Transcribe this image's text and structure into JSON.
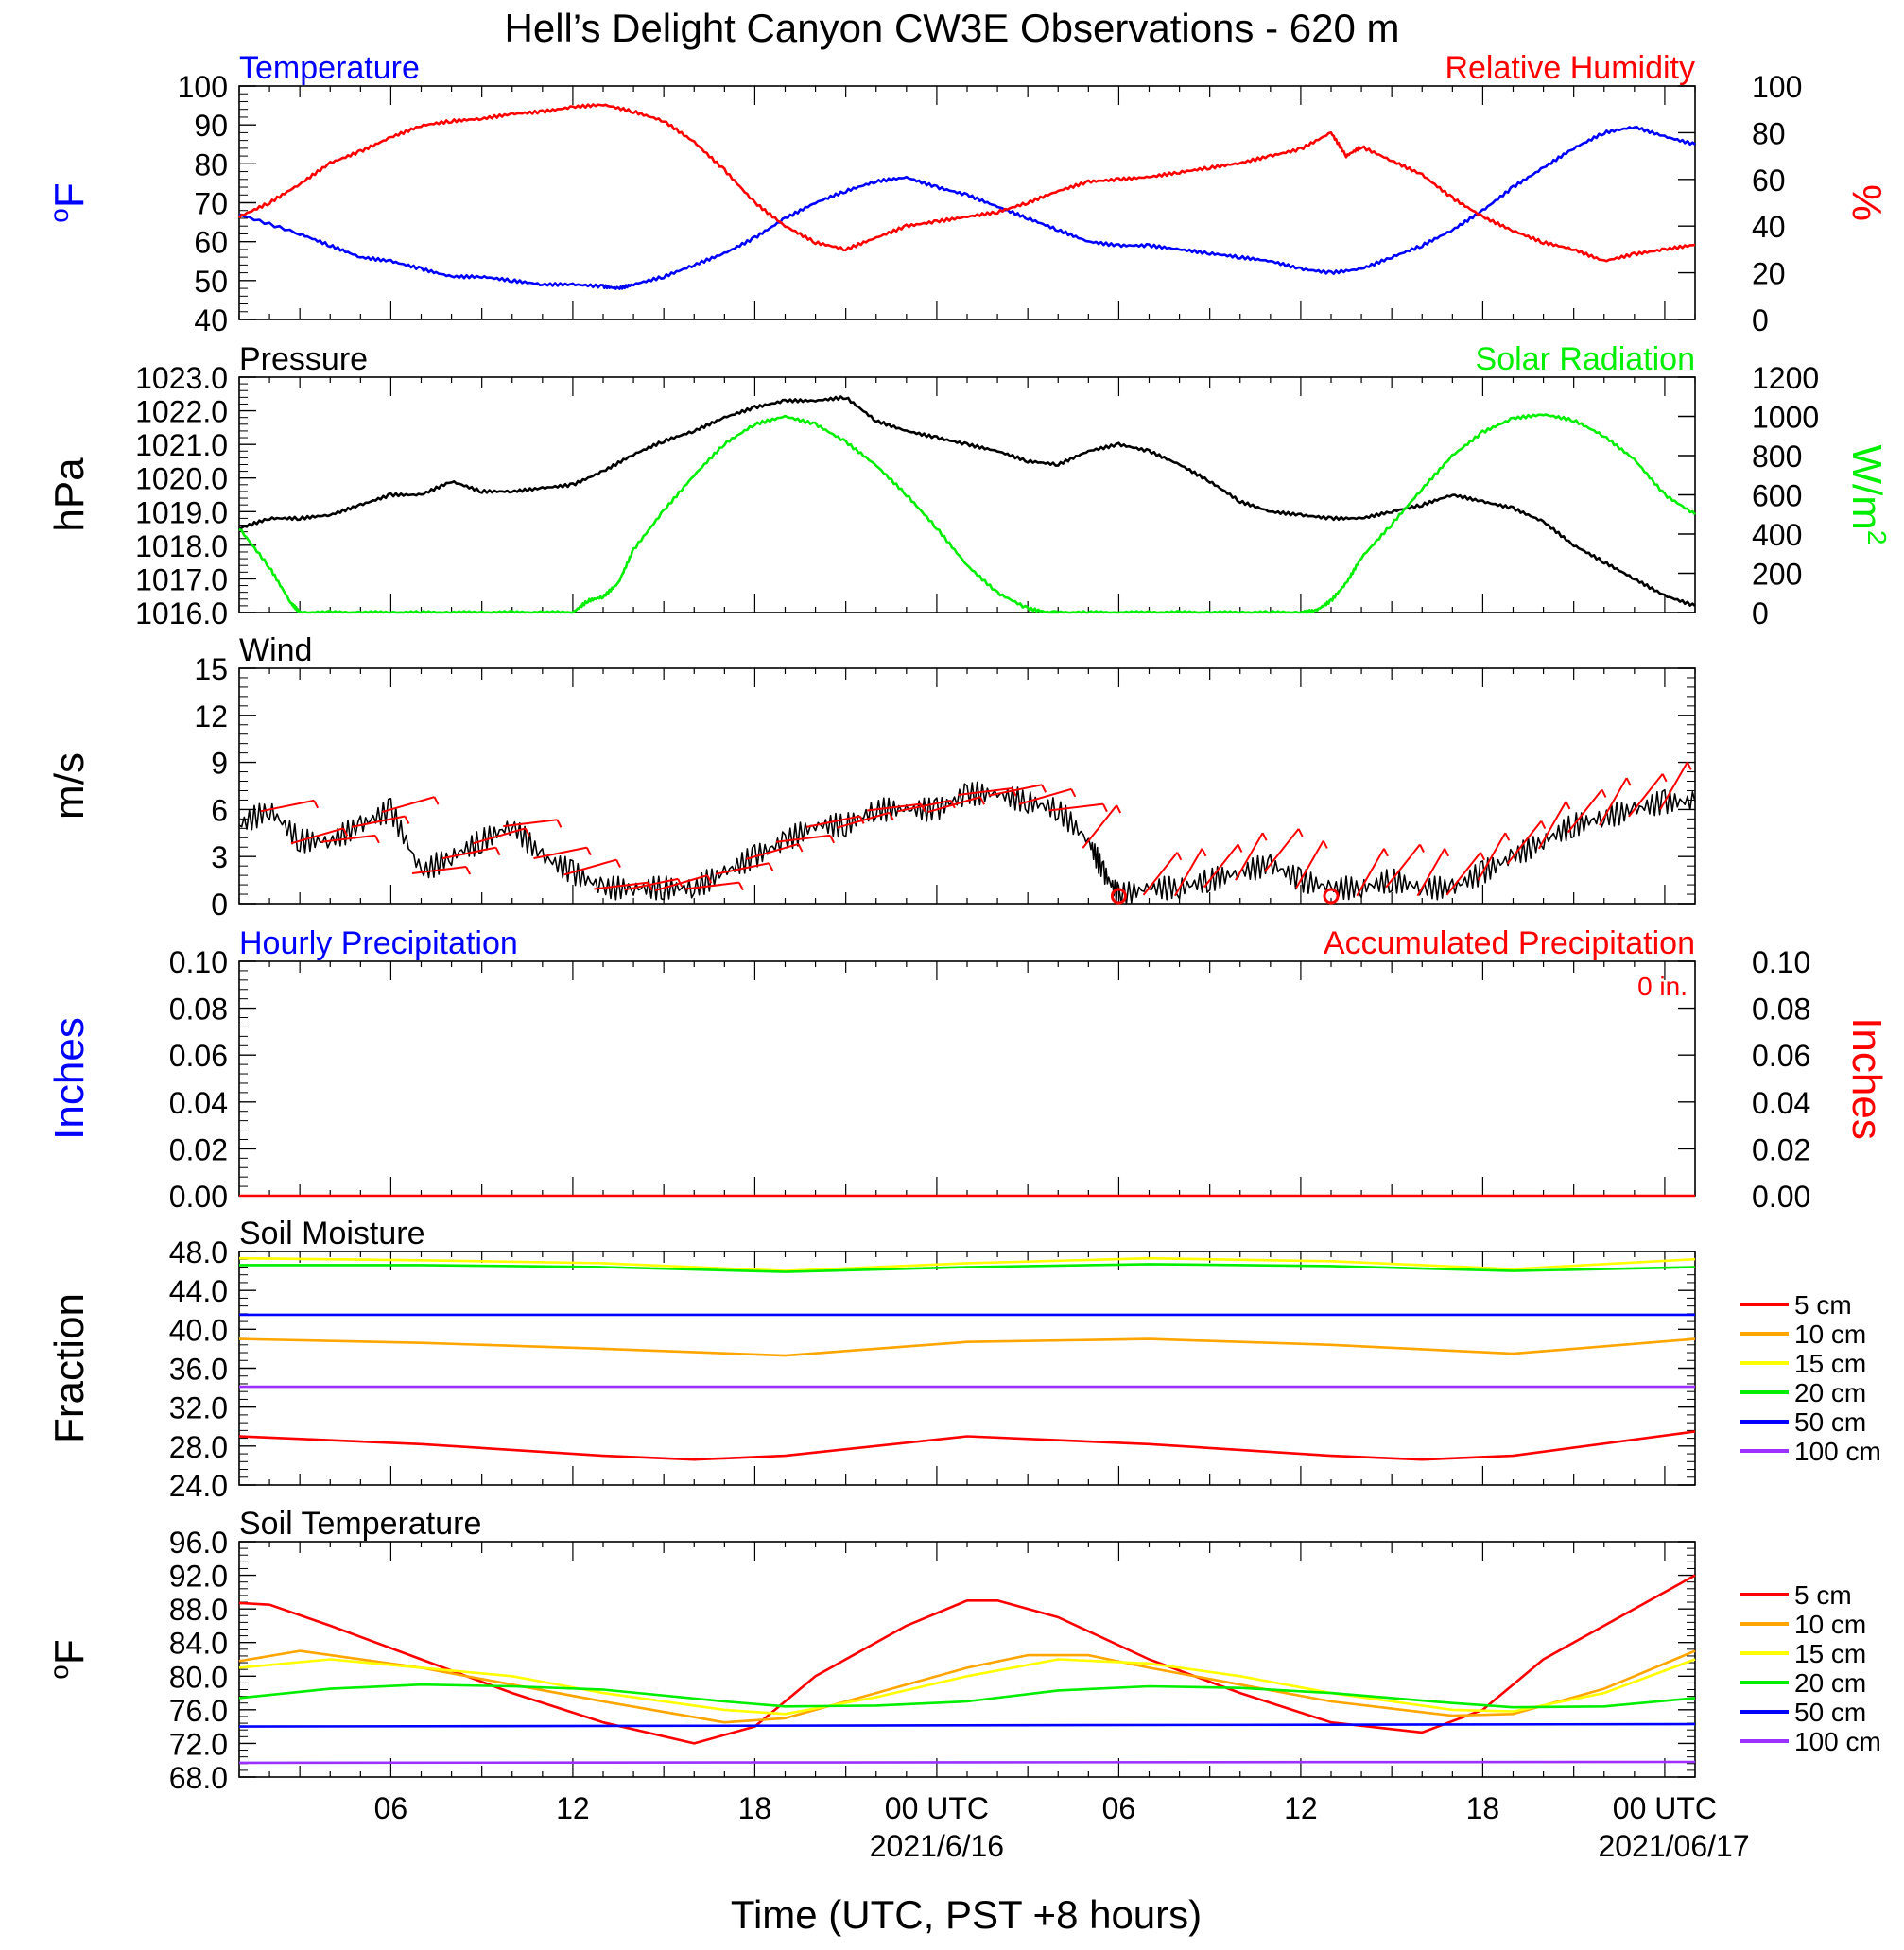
{
  "chart_data": [
    {
      "type": "line",
      "title": "Hell’s Delight Canyon CW3E Observations - 620 m",
      "panel_title_left": "Temperature",
      "panel_title_right": "Relative Humidity",
      "ylabel_left": "oF",
      "ylabel_right": "%",
      "ylim_left": [
        40,
        100
      ],
      "ylim_right": [
        0,
        100
      ],
      "yticks_left": [
        "100",
        "90",
        "80",
        "70",
        "60",
        "50",
        "40"
      ],
      "yticks_right": [
        "100",
        "80",
        "60",
        "40",
        "20",
        "0"
      ],
      "x_unit": "hours since 2021-06-15 01 UTC",
      "xlim": [
        0,
        48
      ],
      "series": [
        {
          "name": "Temperature",
          "axis": "left",
          "color": "#0000ff",
          "x": [
            0,
            2,
            3,
            4,
            5,
            6,
            7,
            8,
            9,
            10,
            11,
            12,
            12.5,
            13,
            14,
            15,
            16,
            17,
            18,
            19,
            20,
            21,
            22,
            23,
            24,
            25,
            26,
            27,
            28,
            29,
            30,
            31,
            32,
            33,
            34,
            35,
            36,
            37,
            38,
            39,
            40,
            41,
            42,
            43,
            44,
            45,
            46,
            47,
            48
          ],
          "y": [
            67,
            62,
            59,
            56,
            55,
            53,
            51,
            51,
            50,
            49,
            49,
            48.5,
            48,
            49,
            51,
            54,
            57,
            61,
            66,
            70,
            73,
            75.5,
            76.5,
            74,
            72,
            69,
            66,
            63,
            60,
            59,
            59,
            58,
            57,
            56,
            55,
            53,
            52,
            53,
            56,
            59,
            63,
            68,
            74,
            79,
            84,
            88,
            89.5,
            87,
            85
          ]
        },
        {
          "name": "Relative Humidity",
          "axis": "right",
          "color": "#ff0000",
          "x": [
            0,
            1,
            2,
            3,
            4,
            5,
            6,
            7,
            8,
            9,
            10,
            11,
            12,
            13,
            14,
            15,
            16,
            17,
            18,
            19,
            20,
            21,
            22,
            23,
            24,
            25,
            26,
            27,
            28,
            29,
            30,
            31,
            32,
            33,
            34,
            35,
            36,
            36.5,
            37,
            38,
            39,
            40,
            41,
            42,
            43,
            44,
            45,
            46,
            47,
            48
          ],
          "y": [
            44,
            50,
            58,
            67,
            72,
            78,
            83,
            85,
            86,
            88,
            89,
            91,
            92,
            89,
            85,
            76,
            64,
            50,
            40,
            33,
            30,
            35,
            40,
            42,
            44,
            46,
            50,
            55,
            59,
            60,
            61,
            63,
            65,
            67,
            70,
            73,
            80,
            70,
            74,
            68,
            62,
            52,
            44,
            38,
            33,
            30,
            25,
            28,
            30,
            32
          ]
        }
      ]
    },
    {
      "type": "line",
      "panel_title_left": "Pressure",
      "panel_title_right": "Solar Radiation",
      "ylabel_left": "hPa",
      "ylabel_right": "W/m2",
      "ylim_left": [
        1016,
        1023
      ],
      "ylim_right": [
        0,
        1200
      ],
      "yticks_left": [
        "1023.0",
        "1022.0",
        "1021.0",
        "1020.0",
        "1019.0",
        "1018.0",
        "1017.0",
        "1016.0"
      ],
      "yticks_right": [
        "1200",
        "1000",
        "800",
        "600",
        "400",
        "200",
        "0"
      ],
      "series": [
        {
          "name": "Pressure",
          "axis": "left",
          "color": "#000000",
          "x": [
            0,
            1,
            2,
            3,
            4,
            5,
            6,
            7,
            8,
            9,
            10,
            11,
            12,
            13,
            14,
            15,
            16,
            17,
            18,
            19,
            20,
            21,
            22,
            23,
            24,
            25,
            26,
            27,
            28,
            29,
            30,
            31,
            32,
            33,
            34,
            35,
            36,
            37,
            38,
            39,
            40,
            41,
            42,
            43,
            44,
            45,
            46,
            47,
            48
          ],
          "y": [
            1018.5,
            1018.8,
            1018.8,
            1018.9,
            1019.2,
            1019.5,
            1019.5,
            1019.9,
            1019.6,
            1019.6,
            1019.7,
            1019.8,
            1020.2,
            1020.7,
            1021.1,
            1021.4,
            1021.8,
            1022.1,
            1022.3,
            1022.3,
            1022.4,
            1021.7,
            1021.4,
            1021.2,
            1021.0,
            1020.8,
            1020.5,
            1020.4,
            1020.8,
            1021.0,
            1020.8,
            1020.4,
            1019.9,
            1019.3,
            1019.0,
            1018.9,
            1018.8,
            1018.8,
            1019.0,
            1019.2,
            1019.5,
            1019.3,
            1019.1,
            1018.7,
            1018.0,
            1017.5,
            1017.0,
            1016.5,
            1016.2
          ]
        },
        {
          "name": "Solar Radiation",
          "axis": "right",
          "color": "#00ee00",
          "x": [
            0,
            1,
            1.7,
            2,
            3,
            4,
            5,
            6,
            7,
            8,
            9,
            10,
            11,
            11.5,
            12,
            12.5,
            13,
            14,
            15,
            16,
            17,
            18,
            19,
            20,
            21,
            22,
            23,
            24,
            25,
            26,
            26.7,
            27,
            28,
            29,
            30,
            31,
            32,
            33,
            34,
            35,
            35.5,
            36,
            36.5,
            37,
            38,
            39,
            40,
            41,
            42,
            43,
            44,
            45,
            46,
            47,
            48
          ],
          "y": [
            430,
            230,
            50,
            0,
            0,
            0,
            0,
            0,
            0,
            0,
            0,
            0,
            0,
            60,
            80,
            150,
            320,
            520,
            700,
            860,
            960,
            1000,
            960,
            870,
            750,
            600,
            430,
            240,
            100,
            20,
            0,
            0,
            0,
            0,
            0,
            0,
            0,
            0,
            0,
            0,
            10,
            60,
            150,
            280,
            450,
            630,
            800,
            920,
            990,
            1010,
            980,
            900,
            780,
            600,
            500
          ]
        }
      ]
    },
    {
      "type": "line",
      "panel_title_left": "Wind",
      "ylabel_left": "m/s",
      "ylim_left": [
        0,
        15
      ],
      "yticks_left": [
        "15",
        "12",
        "9",
        "6",
        "3",
        "0"
      ],
      "series": [
        {
          "name": "Wind",
          "axis": "left",
          "color": "#000000",
          "x": [
            0,
            1,
            2,
            3,
            4,
            5,
            6,
            7,
            8,
            9,
            10,
            11,
            12,
            13,
            14,
            15,
            16,
            17,
            18,
            19,
            20,
            21,
            22,
            23,
            24,
            25,
            26,
            27,
            28,
            28.5,
            29,
            30,
            31,
            32,
            33,
            34,
            35,
            36,
            37,
            38,
            39,
            40,
            41,
            42,
            43,
            44,
            45,
            46,
            47,
            48
          ],
          "y": [
            5,
            6,
            4,
            4,
            5,
            6,
            2,
            3,
            4,
            5,
            3,
            2,
            1,
            1,
            1,
            1,
            2,
            3,
            4,
            5,
            5,
            6,
            6,
            6,
            7,
            7,
            6.5,
            6,
            4,
            2,
            0.5,
            1,
            1,
            1.5,
            2,
            2.5,
            1.5,
            1,
            1,
            1.5,
            1,
            1,
            2,
            3,
            4,
            5,
            5.5,
            6,
            6.5,
            6.5
          ]
        }
      ],
      "barbs_color": "#ff0000",
      "calm_marker_x": [
        29,
        36
      ]
    },
    {
      "type": "line",
      "panel_title_left": "Hourly Precipitation",
      "panel_title_right": "Accumulated Precipitation",
      "annotation": "0 in.",
      "ylabel_left": "Inches",
      "ylabel_right": "Inches",
      "ylim_left": [
        0,
        0.1
      ],
      "ylim_right": [
        0,
        0.1
      ],
      "yticks_left": [
        "0.10",
        "0.08",
        "0.06",
        "0.04",
        "0.02",
        "0.00"
      ],
      "yticks_right": [
        "0.10",
        "0.08",
        "0.06",
        "0.04",
        "0.02",
        "0.00"
      ],
      "series": [
        {
          "name": "Accumulated Precipitation",
          "axis": "right",
          "color": "#ff0000",
          "x": [
            0,
            48
          ],
          "y": [
            0,
            0
          ]
        }
      ]
    },
    {
      "type": "line",
      "panel_title_left": "Soil Moisture",
      "ylabel_left": "Fraction",
      "ylim_left": [
        24,
        48
      ],
      "yticks_left": [
        "48.0",
        "44.0",
        "40.0",
        "36.0",
        "32.0",
        "28.0",
        "24.0"
      ],
      "legend": [
        "5 cm",
        "10 cm",
        "15 cm",
        "20 cm",
        "50 cm",
        "100 cm"
      ],
      "series": [
        {
          "name": "5 cm",
          "color": "#ff0000",
          "x": [
            0,
            6,
            12,
            15,
            18,
            24,
            30,
            36,
            39,
            42,
            48
          ],
          "y": [
            29,
            28.2,
            27,
            26.6,
            27,
            29,
            28.2,
            27,
            26.6,
            27,
            29.5
          ]
        },
        {
          "name": "10 cm",
          "color": "#ffa500",
          "x": [
            0,
            6,
            12,
            18,
            24,
            30,
            36,
            42,
            48
          ],
          "y": [
            39,
            38.6,
            38,
            37.3,
            38.7,
            39,
            38.4,
            37.5,
            39
          ]
        },
        {
          "name": "15 cm",
          "color": "#ffff00",
          "x": [
            0,
            6,
            12,
            18,
            24,
            30,
            36,
            42,
            48
          ],
          "y": [
            47.3,
            47.1,
            46.8,
            46,
            46.8,
            47.3,
            47,
            46.2,
            47.2
          ]
        },
        {
          "name": "20 cm",
          "color": "#00ee00",
          "x": [
            0,
            6,
            12,
            18,
            24,
            30,
            36,
            42,
            48
          ],
          "y": [
            46.6,
            46.6,
            46.4,
            45.9,
            46.4,
            46.7,
            46.5,
            46.0,
            46.4
          ]
        },
        {
          "name": "50 cm",
          "color": "#0000ff",
          "x": [
            0,
            48
          ],
          "y": [
            41.5,
            41.5
          ]
        },
        {
          "name": "100 cm",
          "color": "#9b30ff",
          "x": [
            0,
            48
          ],
          "y": [
            34.1,
            34.1
          ]
        }
      ]
    },
    {
      "type": "line",
      "panel_title_left": "Soil Temperature",
      "ylabel_left": "oF",
      "ylim_left": [
        68,
        96
      ],
      "yticks_left": [
        "96.0",
        "92.0",
        "88.0",
        "84.0",
        "80.0",
        "76.0",
        "72.0",
        "68.0"
      ],
      "legend": [
        "5 cm",
        "10 cm",
        "15 cm",
        "20 cm",
        "50 cm",
        "100 cm"
      ],
      "series": [
        {
          "name": "5 cm",
          "color": "#ff0000",
          "x": [
            0,
            1,
            3,
            6,
            9,
            12,
            15,
            17,
            19,
            22,
            24,
            25,
            27,
            30,
            33,
            36,
            39,
            41,
            43,
            46,
            48
          ],
          "y": [
            88.7,
            88.5,
            86,
            82,
            78,
            74.5,
            72,
            74,
            80,
            86,
            89,
            89,
            87,
            82,
            78,
            74.5,
            73.3,
            76,
            82,
            88,
            92
          ]
        },
        {
          "name": "10 cm",
          "color": "#ffa500",
          "x": [
            0,
            2,
            6,
            9,
            12,
            16,
            18,
            21,
            24,
            26,
            28,
            30,
            33,
            36,
            40,
            42,
            45,
            48
          ],
          "y": [
            81.8,
            83,
            81,
            79,
            77,
            74.5,
            75,
            78,
            81,
            82.5,
            82.5,
            81,
            79,
            77,
            75.3,
            75.5,
            78.5,
            83
          ]
        },
        {
          "name": "15 cm",
          "color": "#ffff00",
          "x": [
            0,
            3,
            6,
            9,
            12,
            16,
            18,
            21,
            24,
            27,
            30,
            33,
            36,
            40,
            42,
            45,
            48
          ],
          "y": [
            81,
            82,
            81,
            80,
            78,
            76,
            75.5,
            77.5,
            80,
            82,
            81.5,
            80,
            78,
            76,
            75.8,
            78,
            82
          ]
        },
        {
          "name": "20 cm",
          "color": "#00ee00",
          "x": [
            0,
            3,
            6,
            9,
            12,
            16,
            18,
            21,
            24,
            27,
            30,
            33,
            36,
            40,
            42,
            45,
            48
          ],
          "y": [
            77.4,
            78.5,
            79,
            78.8,
            78.4,
            77,
            76.4,
            76.5,
            77,
            78.3,
            78.8,
            78.6,
            78,
            76.8,
            76.3,
            76.4,
            77.4
          ]
        },
        {
          "name": "50 cm",
          "color": "#0000ff",
          "x": [
            0,
            48
          ],
          "y": [
            74,
            74.3
          ]
        },
        {
          "name": "100 cm",
          "color": "#9b30ff",
          "x": [
            0,
            48
          ],
          "y": [
            69.7,
            69.8
          ]
        }
      ],
      "xticks": [
        "06",
        "12",
        "18",
        "00 UTC",
        "06",
        "12",
        "18",
        "00 UTC"
      ],
      "xtick_positions": [
        5,
        11,
        17,
        23,
        29,
        35,
        41,
        47
      ],
      "date_labels": [
        "2021/6/16",
        "2021/06/17"
      ],
      "xlabel": "Time (UTC, PST +8 hours)"
    }
  ]
}
